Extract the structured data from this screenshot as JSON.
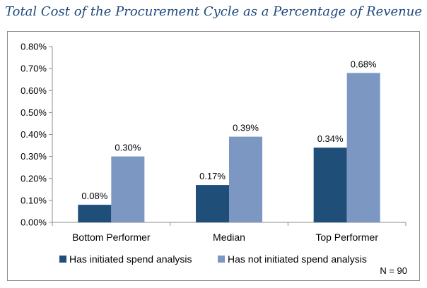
{
  "chart_data": {
    "type": "bar",
    "title": "Total Cost of the Procurement Cycle as a Percentage of Revenue",
    "categories": [
      "Bottom Performer",
      "Median",
      "Top Performer"
    ],
    "series": [
      {
        "name": "Has initiated spend analysis",
        "values": [
          0.08,
          0.17,
          0.34
        ],
        "labels": [
          "0.08%",
          "0.17%",
          "0.34%"
        ],
        "color": "#1f4e79"
      },
      {
        "name": "Has not initiated spend analysis",
        "values": [
          0.3,
          0.39,
          0.68
        ],
        "labels": [
          "0.30%",
          "0.39%",
          "0.68%"
        ],
        "color": "#7b97c2"
      }
    ],
    "ylim": [
      0,
      0.8
    ],
    "yticks": [
      0,
      0.1,
      0.2,
      0.3,
      0.4,
      0.5,
      0.6,
      0.7,
      0.8
    ],
    "ytick_labels": [
      "0.00%",
      "0.10%",
      "0.20%",
      "0.30%",
      "0.40%",
      "0.50%",
      "0.60%",
      "0.70%",
      "0.80%"
    ],
    "legend_position": "bottom",
    "grid": false,
    "annotation": "N = 90"
  }
}
